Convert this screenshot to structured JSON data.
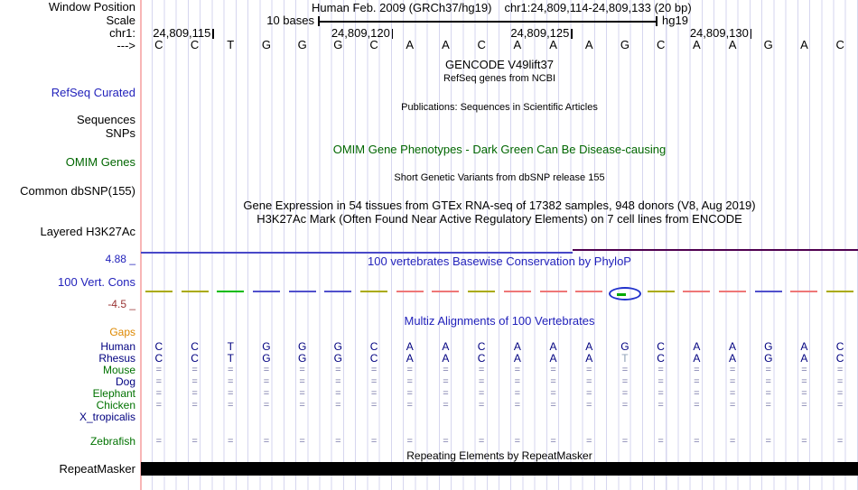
{
  "colors": {
    "grid_line": "#d6d6ef",
    "boundary_line": "#f8b6b6",
    "track_label_blue": "#2222bb",
    "omim_green": "#006600",
    "species_navy": "#000080",
    "species_green": "#007200",
    "gaps_orange": "#dd8800",
    "cons_min_maroon": "#993333",
    "align_match": "#7878aa",
    "mismatch_gray": "#8fa2b8",
    "dash_olive": "#aaaa00",
    "dash_red": "#ee7777",
    "dash_blue": "#5050cc",
    "dash_green": "#00bb00",
    "cons_line_blue": "#4848c8",
    "cons_line_maroon": "#500050",
    "repeat_bar": "#000000"
  },
  "header": {
    "window_position_label": "Window Position",
    "assembly_title": "Human Feb. 2009 (GRCh37/hg19)",
    "position_title": "chr1:24,809,114-24,809,133 (20 bp)",
    "scale_label": "Scale",
    "scale_value": "10 bases",
    "assembly_short": "hg19",
    "chrom_label": "chr1:",
    "strand_label": "--->",
    "ruler_ticks": [
      "24,809,115",
      "24,809,120",
      "24,809,125",
      "24,809,130"
    ]
  },
  "sequence": [
    "C",
    "C",
    "T",
    "G",
    "G",
    "G",
    "C",
    "A",
    "A",
    "C",
    "A",
    "A",
    "A",
    "G",
    "C",
    "A",
    "A",
    "G",
    "A",
    "C"
  ],
  "tracks": {
    "gencode": {
      "left_label": "RefSeq Curated",
      "title": "GENCODE V49lift37",
      "subtitle": "RefSeq genes from NCBI"
    },
    "publications": {
      "left_label_1": "Sequences",
      "left_label_2": "SNPs",
      "title": "Publications: Sequences in Scientific Articles"
    },
    "omim": {
      "left_label": "OMIM Genes",
      "title": "OMIM Gene Phenotypes - Dark Green Can Be Disease-causing"
    },
    "dbsnp": {
      "left_label": "Common dbSNP(155)",
      "title": "Short Genetic Variants from dbSNP release 155"
    },
    "gtex": {
      "title": "Gene Expression in 54 tissues from GTEx RNA-seq of 17382 samples, 948 donors (V8, Aug 2019)"
    },
    "h3k27ac": {
      "left_label": "Layered H3K27Ac",
      "title": "H3K27Ac Mark (Often Found Near Active Regulatory Elements) on 7 cell lines from ENCODE"
    },
    "conservation": {
      "left_label": "100 Vert. Cons",
      "title": "100 vertebrates Basewise Conservation by PhyloP",
      "axis_max": "4.88 _",
      "axis_min": "-4.5 _",
      "dash_colors": [
        "olive",
        "olive",
        "green",
        "blue",
        "blue",
        "blue",
        "olive",
        "red",
        "red",
        "olive",
        "red",
        "red",
        "red",
        "ellipse",
        "olive",
        "red",
        "red",
        "blue",
        "red",
        "olive"
      ]
    },
    "multiz": {
      "title": "Multiz Alignments of 100 Vertebrates",
      "mismatch": {
        "row_index": 2,
        "cell_index": 13
      },
      "rows": [
        {
          "name": "Gaps",
          "color": "orange",
          "cells": []
        },
        {
          "name": "Human",
          "color": "navy",
          "cells": [
            "C",
            "C",
            "T",
            "G",
            "G",
            "G",
            "C",
            "A",
            "A",
            "C",
            "A",
            "A",
            "A",
            "G",
            "C",
            "A",
            "A",
            "G",
            "A",
            "C"
          ]
        },
        {
          "name": "Rhesus",
          "color": "navy",
          "cells": [
            "C",
            "C",
            "T",
            "G",
            "G",
            "G",
            "C",
            "A",
            "A",
            "C",
            "A",
            "A",
            "A",
            "T",
            "C",
            "A",
            "A",
            "G",
            "A",
            "C"
          ]
        },
        {
          "name": "Mouse",
          "color": "green",
          "cells": [
            "=",
            "=",
            "=",
            "=",
            "=",
            "=",
            "=",
            "=",
            "=",
            "=",
            "=",
            "=",
            "=",
            "=",
            "=",
            "=",
            "=",
            "=",
            "=",
            "="
          ]
        },
        {
          "name": "Dog",
          "color": "navy",
          "cells": [
            "=",
            "=",
            "=",
            "=",
            "=",
            "=",
            "=",
            "=",
            "=",
            "=",
            "=",
            "=",
            "=",
            "=",
            "=",
            "=",
            "=",
            "=",
            "=",
            "="
          ]
        },
        {
          "name": "Elephant",
          "color": "green",
          "cells": [
            "=",
            "=",
            "=",
            "=",
            "=",
            "=",
            "=",
            "=",
            "=",
            "=",
            "=",
            "=",
            "=",
            "=",
            "=",
            "=",
            "=",
            "=",
            "=",
            "="
          ]
        },
        {
          "name": "Chicken",
          "color": "green",
          "cells": [
            "=",
            "=",
            "=",
            "=",
            "=",
            "=",
            "=",
            "=",
            "=",
            "=",
            "=",
            "=",
            "=",
            "=",
            "=",
            "=",
            "=",
            "=",
            "=",
            "="
          ]
        },
        {
          "name": "X_tropicalis",
          "color": "navy",
          "cells": []
        },
        {
          "name": "Zebrafish",
          "color": "green",
          "cells": [
            "=",
            "=",
            "=",
            "=",
            "=",
            "=",
            "=",
            "=",
            "=",
            "=",
            "=",
            "=",
            "=",
            "=",
            "=",
            "=",
            "=",
            "=",
            "=",
            "="
          ]
        }
      ]
    },
    "repeatmasker": {
      "left_label": "RepeatMasker",
      "title": "Repeating Elements by RepeatMasker"
    }
  }
}
